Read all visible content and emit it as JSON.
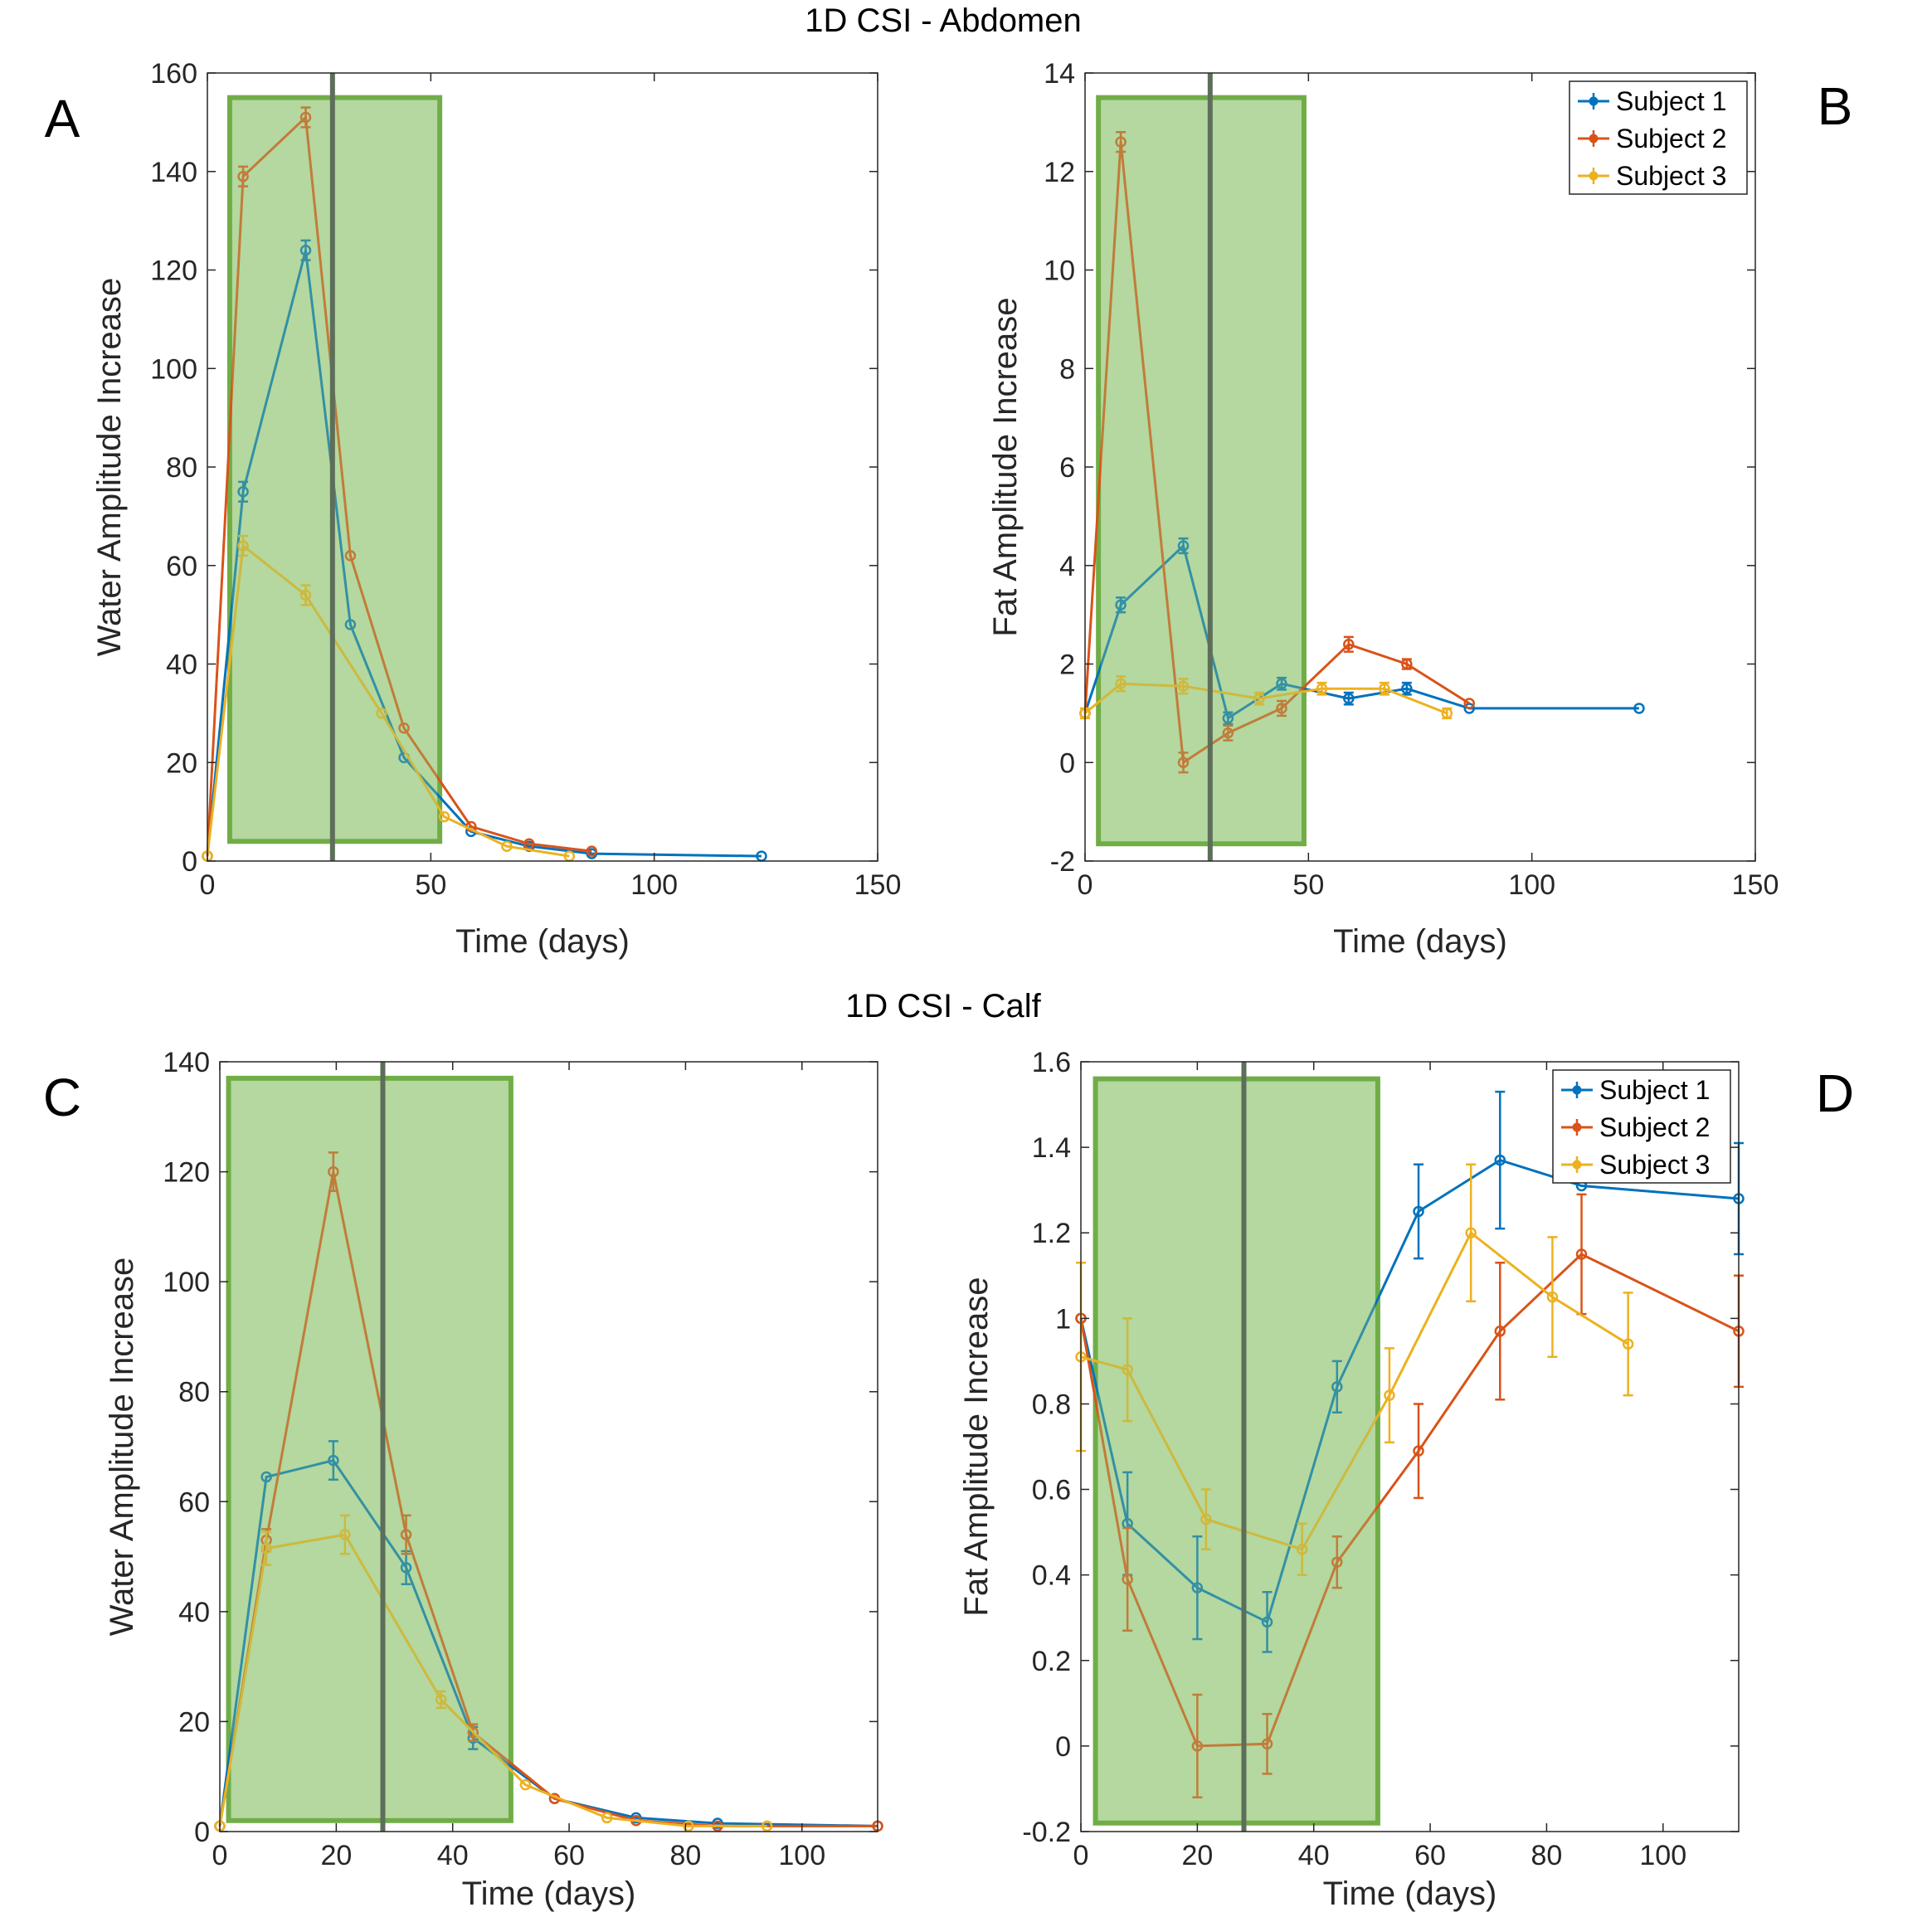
{
  "figure": {
    "section_titles": [
      "1D CSI - Abdomen",
      "1D CSI - Calf"
    ]
  },
  "chart_data": [
    {
      "panel": "A",
      "type": "line",
      "xlabel": "Time (days)",
      "ylabel": "Water Amplitude Increase",
      "xlim": [
        0,
        150
      ],
      "ylim": [
        0,
        160
      ],
      "xticks": [
        0,
        50,
        100,
        150
      ],
      "yticks": [
        0,
        20,
        40,
        60,
        80,
        100,
        120,
        140,
        160
      ],
      "grid": false,
      "legend": null,
      "shaded_region": {
        "x": [
          5,
          52
        ],
        "y": [
          4,
          155
        ]
      },
      "vertical_line": 28,
      "series": [
        {
          "color": "#0072BD",
          "x": [
            0,
            8,
            22,
            32,
            44,
            59,
            72,
            86,
            124
          ],
          "y": [
            1,
            75,
            124,
            48,
            21,
            6,
            3,
            1.5,
            1
          ],
          "err": [
            0,
            2,
            2,
            0,
            0,
            0,
            0,
            0,
            0
          ]
        },
        {
          "color": "#D95319",
          "x": [
            0,
            8,
            22,
            32,
            44,
            59,
            72,
            86
          ],
          "y": [
            1,
            139,
            151,
            62,
            27,
            7,
            3.5,
            2
          ],
          "err": [
            0,
            2,
            2,
            0,
            0,
            0,
            0,
            0
          ]
        },
        {
          "color": "#EDB120",
          "x": [
            0,
            8,
            22,
            39,
            53,
            67,
            81
          ],
          "y": [
            1,
            64,
            54,
            30,
            9,
            3,
            1
          ],
          "err": [
            0,
            2,
            2,
            0,
            0,
            0,
            0
          ]
        }
      ]
    },
    {
      "panel": "B",
      "type": "line",
      "xlabel": "Time  (days)",
      "ylabel": "Fat Amplitude Increase",
      "xlim": [
        0,
        150
      ],
      "ylim": [
        -2,
        14
      ],
      "xticks": [
        0,
        50,
        100,
        150
      ],
      "yticks": [
        -2,
        0,
        2,
        4,
        6,
        8,
        10,
        12,
        14
      ],
      "grid": false,
      "legend": {
        "position": "top-right",
        "entries": [
          "Subject 1",
          "Subject 2",
          "Subject 3"
        ]
      },
      "shaded_region": {
        "x": [
          3,
          49
        ],
        "y": [
          -1.65,
          13.5
        ]
      },
      "vertical_line": 28,
      "series": [
        {
          "color": "#0072BD",
          "x": [
            0,
            8,
            22,
            32,
            44,
            59,
            72,
            86,
            124
          ],
          "y": [
            1,
            3.2,
            4.4,
            0.9,
            1.6,
            1.3,
            1.5,
            1.1,
            1.1
          ],
          "err": [
            0,
            0.15,
            0.15,
            0.12,
            0.12,
            0.12,
            0.12,
            0,
            0
          ]
        },
        {
          "color": "#D95319",
          "x": [
            0,
            8,
            22,
            32,
            44,
            59,
            72,
            86
          ],
          "y": [
            1,
            12.6,
            0,
            0.6,
            1.1,
            2.4,
            2,
            1.2
          ],
          "err": [
            0,
            0.2,
            0.2,
            0.15,
            0.15,
            0.15,
            0.1,
            0
          ]
        },
        {
          "color": "#EDB120",
          "x": [
            0,
            8,
            22,
            39,
            53,
            67,
            81
          ],
          "y": [
            1,
            1.6,
            1.55,
            1.3,
            1.5,
            1.5,
            1
          ],
          "err": [
            0.1,
            0.15,
            0.15,
            0.12,
            0.12,
            0.12,
            0.1
          ]
        }
      ]
    },
    {
      "panel": "C",
      "type": "line",
      "xlabel": "Time (days)",
      "ylabel": "Water Amplitude Increase",
      "xlim": [
        0,
        113
      ],
      "ylim": [
        0,
        140
      ],
      "xticks": [
        0,
        20,
        40,
        60,
        80,
        100
      ],
      "yticks": [
        0,
        20,
        40,
        60,
        80,
        100,
        120,
        140
      ],
      "grid": false,
      "legend": null,
      "shaded_region": {
        "x": [
          1.5,
          50
        ],
        "y": [
          2,
          137
        ]
      },
      "vertical_line": 28,
      "series": [
        {
          "color": "#0072BD",
          "x": [
            0,
            8,
            19.5,
            32,
            43.5,
            57.5,
            71.5,
            85.5,
            113
          ],
          "y": [
            1,
            64.5,
            67.5,
            48,
            17,
            6,
            2.5,
            1.5,
            1
          ],
          "err": [
            0,
            0,
            3.5,
            3,
            2,
            0,
            0,
            0,
            0
          ]
        },
        {
          "color": "#D95319",
          "x": [
            0,
            8,
            19.5,
            32,
            43.5,
            57.5,
            71.5,
            85.5,
            113
          ],
          "y": [
            1,
            53,
            120,
            54,
            18,
            6,
            2,
            1,
            1
          ],
          "err": [
            0,
            2,
            3.5,
            3.5,
            1.5,
            0,
            0,
            0,
            0
          ]
        },
        {
          "color": "#EDB120",
          "x": [
            0,
            8,
            21.5,
            38,
            52.5,
            66.5,
            80.5,
            94
          ],
          "y": [
            1,
            51.5,
            54,
            24,
            8.5,
            2.5,
            1,
            1
          ],
          "err": [
            0,
            3,
            3.5,
            1.5,
            0,
            0,
            0,
            0
          ]
        }
      ]
    },
    {
      "panel": "D",
      "type": "line",
      "xlabel": "Time  (days)",
      "ylabel": "Fat Amplitude Increase",
      "xlim": [
        0,
        113
      ],
      "ylim": [
        -0.2,
        1.6
      ],
      "xticks": [
        0,
        20,
        40,
        60,
        80,
        100
      ],
      "yticks": [
        -0.2,
        0,
        0.2,
        0.4,
        0.6,
        0.8,
        1,
        1.2,
        1.4,
        1.6
      ],
      "yticklabels": [
        "-0.2",
        "0",
        "0.2",
        "0.4",
        "0.6",
        "0.8",
        "1",
        "1.2",
        "1.4",
        "1.6"
      ],
      "grid": false,
      "legend": {
        "position": "top-right",
        "entries": [
          "Subject 1",
          "Subject 2",
          "Subject 3"
        ]
      },
      "shaded_region": {
        "x": [
          2.5,
          51
        ],
        "y": [
          -0.18,
          1.56
        ]
      },
      "vertical_line": 28,
      "series": [
        {
          "color": "#0072BD",
          "x": [
            0,
            8,
            20,
            32,
            44,
            58,
            72,
            86,
            113
          ],
          "y": [
            1,
            0.52,
            0.37,
            0.29,
            0.84,
            1.25,
            1.37,
            1.31,
            1.28
          ],
          "err": [
            0,
            0.12,
            0.12,
            0.07,
            0.06,
            0.11,
            0.16,
            0,
            0.13
          ]
        },
        {
          "color": "#D95319",
          "x": [
            0,
            8,
            20,
            32,
            44,
            58,
            72,
            86,
            113
          ],
          "y": [
            1,
            0.39,
            0,
            0.005,
            0.43,
            0.69,
            0.97,
            1.15,
            0.97
          ],
          "err": [
            0,
            0.12,
            0.12,
            0.07,
            0.06,
            0.11,
            0.16,
            0.14,
            0.13
          ]
        },
        {
          "color": "#EDB120",
          "x": [
            0,
            8,
            21.5,
            38,
            53,
            67,
            81,
            94
          ],
          "y": [
            0.91,
            0.88,
            0.53,
            0.46,
            0.82,
            1.2,
            1.05,
            0.94
          ],
          "err": [
            0.22,
            0.12,
            0.07,
            0.06,
            0.11,
            0.16,
            0.14,
            0.12
          ]
        }
      ]
    }
  ]
}
